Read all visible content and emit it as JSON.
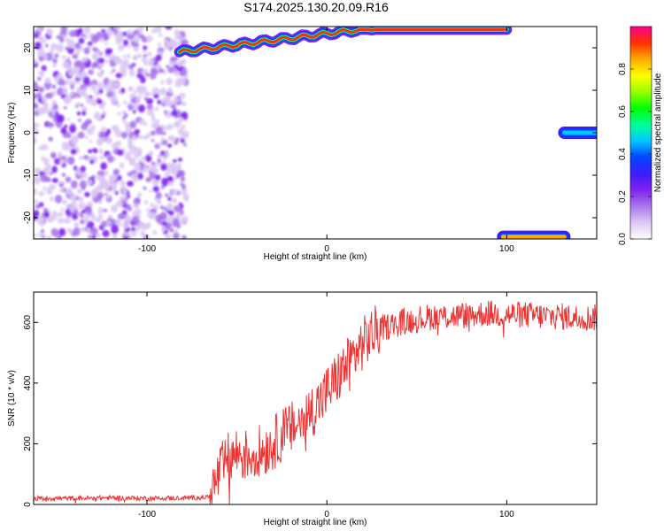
{
  "title": "S174.2025.130.20.09.R16",
  "colors": {
    "snr_line": "#ee3333",
    "colormap": [
      "#ffffff",
      "#dcc8f4",
      "#a878ec",
      "#7f22ee",
      "#3c1cff",
      "#0046ff",
      "#00c8ff",
      "#00ff9a",
      "#00ff00",
      "#9aff00",
      "#ffff00",
      "#ffaa00",
      "#ff3000",
      "#ff0090"
    ]
  },
  "chart_data": [
    {
      "type": "heatmap",
      "xlabel": "Height of straight line (km)",
      "ylabel": "Frequency (Hz)",
      "xlim": [
        -163,
        150
      ],
      "ylim": [
        -25,
        25
      ],
      "xticks": [
        -100,
        0,
        100
      ],
      "yticks": [
        -20,
        -10,
        0,
        10,
        20
      ],
      "colorbar": {
        "label": "Normalized spectral amplitude",
        "range": [
          0,
          1
        ],
        "ticks": [
          0.0,
          0.2,
          0.4,
          0.6,
          0.8
        ]
      },
      "features": [
        {
          "feature": "noise",
          "x_range": [
            -163,
            -78
          ],
          "y_range": [
            -25,
            25
          ],
          "amplitude": 0.12
        },
        {
          "feature": "ridge",
          "x_range": [
            -82,
            100
          ],
          "frequency": [
            19,
            25
          ],
          "amplitude": 0.9
        },
        {
          "feature": "band",
          "x_range": [
            132,
            150
          ],
          "frequency": 0,
          "amplitude": 0.45
        },
        {
          "feature": "band",
          "x_range": [
            98,
            132
          ],
          "frequency": -24.5,
          "amplitude": 0.85
        }
      ]
    },
    {
      "type": "line",
      "xlabel": "Height of straight line (km)",
      "ylabel": "SNR (10 * v/v)",
      "xlim": [
        -163,
        150
      ],
      "ylim": [
        0,
        700
      ],
      "xticks": [
        -100,
        0,
        100
      ],
      "yticks": [
        0,
        200,
        400,
        600
      ],
      "x": [
        -163,
        -140,
        -120,
        -100,
        -85,
        -75,
        -65,
        -60,
        -55,
        -50,
        -45,
        -40,
        -35,
        -30,
        -25,
        -20,
        -15,
        -10,
        -5,
        0,
        5,
        10,
        15,
        20,
        25,
        30,
        40,
        50,
        60,
        70,
        80,
        90,
        100,
        110,
        120,
        130,
        140,
        150
      ],
      "y": [
        20,
        20,
        22,
        20,
        21,
        22,
        25,
        100,
        150,
        170,
        160,
        170,
        180,
        200,
        230,
        250,
        270,
        300,
        330,
        370,
        410,
        450,
        490,
        530,
        560,
        580,
        600,
        610,
        620,
        620,
        625,
        630,
        625,
        625,
        620,
        620,
        615,
        615
      ]
    }
  ]
}
